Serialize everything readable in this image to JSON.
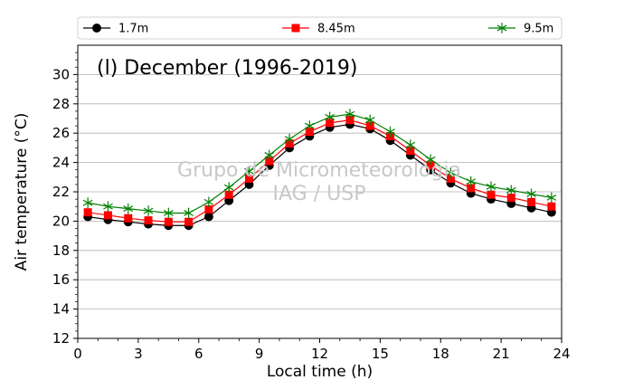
{
  "chart_data": {
    "type": "line",
    "title": "(l) December (1996-2019)",
    "watermark": [
      "Grupo de Micrometeorologia",
      "IAG / USP"
    ],
    "xlabel": "Local time (h)",
    "ylabel": "Air temperature (°C)",
    "xlim": [
      0,
      24
    ],
    "ylim": [
      12,
      32
    ],
    "xticks": [
      0,
      3,
      6,
      9,
      12,
      15,
      18,
      21,
      24
    ],
    "yticks": [
      12,
      14,
      16,
      18,
      20,
      22,
      24,
      26,
      28,
      30
    ],
    "grid": "horizontal",
    "legend_position": "top",
    "x": [
      0.5,
      1.5,
      2.5,
      3.5,
      4.5,
      5.5,
      6.5,
      7.5,
      8.5,
      9.5,
      10.5,
      11.5,
      12.5,
      13.5,
      14.5,
      15.5,
      16.5,
      17.5,
      18.5,
      19.5,
      20.5,
      21.5,
      22.5,
      23.5
    ],
    "series": [
      {
        "name": "1.7m",
        "color": "#000000",
        "marker": "circle",
        "values": [
          20.3,
          20.1,
          19.95,
          19.8,
          19.7,
          19.7,
          20.3,
          21.4,
          22.5,
          23.8,
          25.0,
          25.8,
          26.4,
          26.6,
          26.3,
          25.5,
          24.5,
          23.5,
          22.6,
          21.9,
          21.5,
          21.2,
          20.9,
          20.6
        ]
      },
      {
        "name": "8.45m",
        "color": "#ff0000",
        "marker": "square",
        "values": [
          20.6,
          20.4,
          20.2,
          20.05,
          19.95,
          19.95,
          20.8,
          21.8,
          22.9,
          24.1,
          25.3,
          26.1,
          26.7,
          26.9,
          26.5,
          25.8,
          24.8,
          23.8,
          22.9,
          22.25,
          21.8,
          21.6,
          21.3,
          21.0
        ]
      },
      {
        "name": "9.5m",
        "color": "#008000",
        "marker": "star",
        "values": [
          21.25,
          21.0,
          20.85,
          20.7,
          20.55,
          20.55,
          21.3,
          22.3,
          23.4,
          24.5,
          25.6,
          26.5,
          27.1,
          27.3,
          26.9,
          26.1,
          25.2,
          24.2,
          23.3,
          22.7,
          22.35,
          22.1,
          21.85,
          21.6
        ]
      }
    ]
  }
}
